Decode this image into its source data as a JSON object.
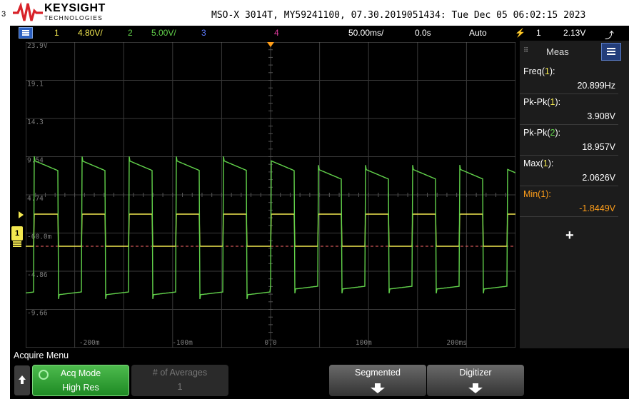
{
  "brand": {
    "name": "KEYSIGHT",
    "sub": "TECHNOLOGIES"
  },
  "device_info": "MSO-X 3014T, MY59241100, 07.30.2019051434: Tue Dec 05 06:02:15 2023",
  "edge_mark": "3",
  "status": {
    "ch1_num": "1",
    "ch1_scale": "4.80V/",
    "ch2_num": "2",
    "ch2_scale": "5.00V/",
    "ch3_num": "3",
    "ch4_num": "4",
    "timebase": "50.00ms/",
    "delay": "0.0s",
    "trigger_mode": "Auto",
    "trigger_src": "1",
    "trigger_level": "2.13V"
  },
  "waveform": {
    "y_labels": [
      "23.9V",
      "19.1",
      "14.3",
      "9.54",
      "4.74",
      "-60.0m",
      "-4.86",
      "-9.66"
    ],
    "x_labels": [
      "-200m",
      "-100m",
      "0.0",
      "100m",
      "200ms"
    ],
    "ch1_marker": "1",
    "trigger_marker": "T",
    "colors": {
      "ch1": "#f3e850",
      "ch2": "#62d24b",
      "grid": "#3a3a3a",
      "trigger_line": "#ff6a6a"
    }
  },
  "meas": {
    "title": "Meas",
    "items": [
      {
        "label": "Freq(",
        "ch": "1",
        "close": "):",
        "value": "20.899Hz"
      },
      {
        "label": "Pk-Pk(",
        "ch": "1",
        "close": "):",
        "value": "3.908V"
      },
      {
        "label": "Pk-Pk(",
        "ch": "2",
        "close": "):",
        "value": "18.957V"
      },
      {
        "label": "Max(",
        "ch": "1",
        "close": "):",
        "value": "2.0626V"
      },
      {
        "label": "Min(",
        "ch": "1",
        "close": "):",
        "value": "-1.8449V"
      }
    ],
    "add": "+"
  },
  "softkeys": {
    "menu_title": "Acquire Menu",
    "acq_mode": {
      "label": "Acq Mode",
      "value": "High Res"
    },
    "averages": {
      "label": "# of Averages",
      "value": "1"
    },
    "segmented": "Segmented",
    "digitizer": "Digitizer"
  }
}
